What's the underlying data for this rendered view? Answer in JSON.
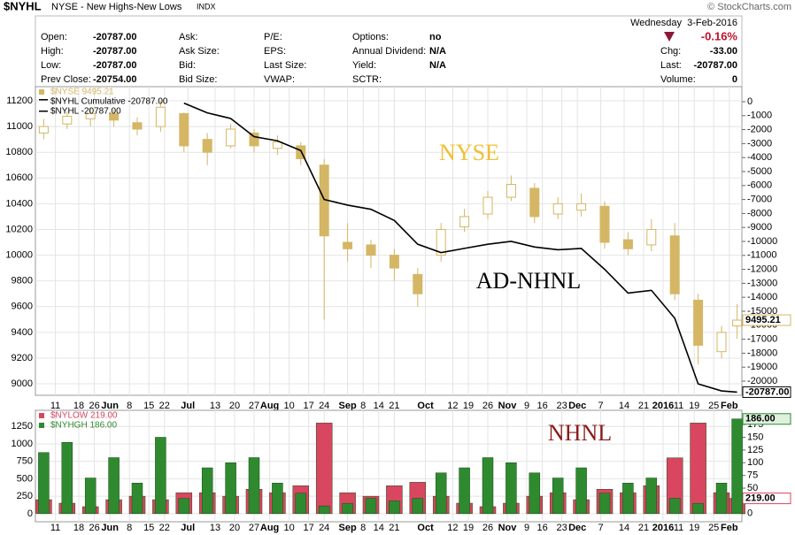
{
  "header": {
    "symbol": "$NYHL",
    "description": "NYSE - New Highs-New Lows",
    "exchange": "INDX",
    "copyright": "© StockCharts.com",
    "date": "Wednesday  3-Feb-2016",
    "change": "-0.16%",
    "quote": [
      [
        {
          "label": "Open:",
          "value": "-20787.00"
        },
        {
          "label": "Ask:"
        },
        {
          "label": "P/E:"
        },
        {
          "label": "Options:",
          "value": "no"
        }
      ],
      [
        {
          "label": "High:",
          "value": "-20787.00"
        },
        {
          "label": "Ask Size:"
        },
        {
          "label": "EPS:"
        },
        {
          "label": "Annual Dividend:",
          "value": "N/A"
        }
      ],
      [
        {
          "label": "Low:",
          "value": "-20787.00"
        },
        {
          "label": "Bid:"
        },
        {
          "label": "Last Size:"
        },
        {
          "label": "Yield:",
          "value": "N/A"
        }
      ],
      [
        {
          "label": "Prev Close:",
          "value": "-20754.00"
        },
        {
          "label": "Bid Size:"
        },
        {
          "label": "VWAP:"
        },
        {
          "label": "SCTR:"
        }
      ]
    ],
    "summary": [
      {
        "label": "Chg:",
        "value": "-33.00"
      },
      {
        "label": "Last:",
        "value": "-20787.00"
      },
      {
        "label": "Volume:",
        "value": "0"
      }
    ]
  },
  "chart_data": [
    {
      "type": "candlestick",
      "grid": true,
      "x": [
        1,
        7,
        13,
        19,
        25,
        31,
        37,
        43,
        49,
        55,
        61,
        67,
        73,
        79,
        85,
        91,
        97,
        103,
        109,
        115,
        121,
        127,
        133,
        139,
        145,
        151,
        157,
        163,
        169,
        175,
        179
      ],
      "xlim": [
        0,
        180
      ],
      "xticks": [
        {
          "value": 4,
          "label": "11"
        },
        {
          "value": 10,
          "label": "18"
        },
        {
          "value": 14,
          "label": "26"
        },
        {
          "value": 18,
          "label": "Jun"
        },
        {
          "value": 23,
          "label": "8"
        },
        {
          "value": 28,
          "label": "15"
        },
        {
          "value": 32,
          "label": "22"
        },
        {
          "value": 38,
          "label": "Jul"
        },
        {
          "value": 45,
          "label": "13"
        },
        {
          "value": 50,
          "label": "20"
        },
        {
          "value": 55,
          "label": "27"
        },
        {
          "value": 59,
          "label": "Aug"
        },
        {
          "value": 64,
          "label": "10"
        },
        {
          "value": 69,
          "label": "17"
        },
        {
          "value": 73,
          "label": "24"
        },
        {
          "value": 79,
          "label": "Sep"
        },
        {
          "value": 83,
          "label": "8"
        },
        {
          "value": 87,
          "label": "14"
        },
        {
          "value": 91,
          "label": "21"
        },
        {
          "value": 99,
          "label": "Oct"
        },
        {
          "value": 106,
          "label": "12"
        },
        {
          "value": 110,
          "label": "19"
        },
        {
          "value": 115,
          "label": "26"
        },
        {
          "value": 120,
          "label": "Nov"
        },
        {
          "value": 125,
          "label": "9"
        },
        {
          "value": 129,
          "label": "16"
        },
        {
          "value": 134,
          "label": "23"
        },
        {
          "value": 138,
          "label": "Dec"
        },
        {
          "value": 144,
          "label": "7"
        },
        {
          "value": 150,
          "label": "14"
        },
        {
          "value": 155,
          "label": "21"
        },
        {
          "value": 160,
          "label": "2016"
        },
        {
          "value": 164,
          "label": "11"
        },
        {
          "value": 168,
          "label": "19"
        },
        {
          "value": 173,
          "label": "25"
        },
        {
          "value": 177,
          "label": "Feb"
        }
      ],
      "ylim": [
        8911,
        11310
      ],
      "yticks": [
        9000,
        9200,
        9400,
        9600,
        9800,
        10000,
        10200,
        10400,
        10600,
        10800,
        11000,
        11200
      ],
      "y2lim": [
        -21013,
        1076
      ],
      "y2ticks": [
        0,
        -1000,
        -2000,
        -3000,
        -4000,
        -5000,
        -6000,
        -7000,
        -8000,
        -9000,
        -10000,
        -11000,
        -12000,
        -13000,
        -14000,
        -15000,
        -16000,
        -17000,
        -18000,
        -19000,
        -20000
      ],
      "series": [
        {
          "name": "$NYSE 9495.21",
          "type": "candlestick",
          "color": "#d4b665",
          "open": [
            10950,
            11020,
            11060,
            11100,
            11030,
            11000,
            11100,
            10900,
            10850,
            10950,
            10830,
            10850,
            10700,
            10100,
            10080,
            10000,
            9850,
            10000,
            10220,
            10320,
            10450,
            10520,
            10320,
            10350,
            10380,
            10120,
            10080,
            10150,
            9650,
            9250,
            9450
          ],
          "high": [
            11060,
            11120,
            11150,
            11130,
            11070,
            11200,
            11110,
            10950,
            11020,
            10980,
            10930,
            10880,
            10750,
            10250,
            10120,
            10050,
            9900,
            10250,
            10360,
            10500,
            10620,
            10560,
            10450,
            10480,
            10420,
            10180,
            10280,
            10250,
            9700,
            9450,
            9620
          ],
          "low": [
            10900,
            10980,
            11000,
            11000,
            10930,
            10960,
            10800,
            10700,
            10830,
            10800,
            10780,
            10700,
            9500,
            9950,
            9900,
            9800,
            9600,
            9950,
            10180,
            10280,
            10420,
            10250,
            10280,
            10300,
            10050,
            10000,
            10030,
            9650,
            9150,
            9200,
            9350
          ],
          "close": [
            11000,
            11080,
            11100,
            11050,
            10980,
            11150,
            10850,
            10800,
            10980,
            10850,
            10880,
            10750,
            10150,
            10050,
            10000,
            9900,
            9700,
            10200,
            10300,
            10450,
            10550,
            10300,
            10400,
            10400,
            10100,
            10050,
            10200,
            9700,
            9300,
            9400,
            9495.21
          ],
          "last_label": "9495.21"
        },
        {
          "name": "$NYHL Cumulative -20787.00",
          "type": "line",
          "axis": "y2",
          "color": "#000000",
          "values": [
            null,
            null,
            null,
            null,
            null,
            null,
            -100,
            -800,
            -1200,
            -2500,
            -2800,
            -3500,
            -7000,
            -7400,
            -7700,
            -8500,
            -10200,
            -10800,
            -10500,
            -10200,
            -10000,
            -10400,
            -10600,
            -10500,
            -12000,
            -13700,
            -13500,
            -15500,
            -20200,
            -20700,
            -20787
          ],
          "last_label": "-20787.00"
        }
      ],
      "legend_extra": "$NYHL -20787.00",
      "annotations": [
        {
          "text": "NYSE",
          "color": "#f0c030"
        },
        {
          "text": "AD-NHNL",
          "color": "#000000"
        }
      ]
    },
    {
      "type": "bar",
      "grid": true,
      "x": [
        1,
        7,
        13,
        19,
        25,
        31,
        37,
        43,
        49,
        55,
        61,
        67,
        73,
        79,
        85,
        91,
        97,
        103,
        109,
        115,
        121,
        127,
        133,
        139,
        145,
        151,
        157,
        163,
        169,
        175,
        179
      ],
      "xlim": [
        0,
        180
      ],
      "xticks": [
        {
          "value": 4,
          "label": "11"
        },
        {
          "value": 10,
          "label": "18"
        },
        {
          "value": 14,
          "label": "26"
        },
        {
          "value": 18,
          "label": "Jun"
        },
        {
          "value": 23,
          "label": "8"
        },
        {
          "value": 28,
          "label": "15"
        },
        {
          "value": 32,
          "label": "22"
        },
        {
          "value": 38,
          "label": "Jul"
        },
        {
          "value": 45,
          "label": "13"
        },
        {
          "value": 50,
          "label": "20"
        },
        {
          "value": 55,
          "label": "27"
        },
        {
          "value": 59,
          "label": "Aug"
        },
        {
          "value": 64,
          "label": "10"
        },
        {
          "value": 69,
          "label": "17"
        },
        {
          "value": 73,
          "label": "24"
        },
        {
          "value": 79,
          "label": "Sep"
        },
        {
          "value": 83,
          "label": "8"
        },
        {
          "value": 87,
          "label": "14"
        },
        {
          "value": 91,
          "label": "21"
        },
        {
          "value": 99,
          "label": "Oct"
        },
        {
          "value": 106,
          "label": "12"
        },
        {
          "value": 110,
          "label": "19"
        },
        {
          "value": 115,
          "label": "26"
        },
        {
          "value": 120,
          "label": "Nov"
        },
        {
          "value": 125,
          "label": "9"
        },
        {
          "value": 129,
          "label": "16"
        },
        {
          "value": 134,
          "label": "23"
        },
        {
          "value": 138,
          "label": "Dec"
        },
        {
          "value": 144,
          "label": "7"
        },
        {
          "value": 150,
          "label": "14"
        },
        {
          "value": 155,
          "label": "21"
        },
        {
          "value": 160,
          "label": "2016"
        },
        {
          "value": 164,
          "label": "11"
        },
        {
          "value": 168,
          "label": "19"
        },
        {
          "value": 173,
          "label": "25"
        },
        {
          "value": 177,
          "label": "Feb"
        }
      ],
      "ylim": [
        -116,
        1482
      ],
      "yticks": [
        0,
        250,
        500,
        750,
        1000,
        1250
      ],
      "y2lim": [
        -16,
        203
      ],
      "y2ticks": [
        0,
        25,
        50,
        75,
        100,
        125,
        150,
        175
      ],
      "series": [
        {
          "name": "$NYLOW 219.00",
          "type": "bar",
          "color": "#d9465f",
          "values": [
            200,
            150,
            100,
            200,
            250,
            200,
            300,
            300,
            250,
            350,
            300,
            400,
            1300,
            300,
            250,
            400,
            450,
            250,
            150,
            100,
            150,
            250,
            300,
            200,
            350,
            300,
            400,
            800,
            1300,
            300,
            219
          ],
          "last_label": "219.00"
        },
        {
          "name": "$NYHGH 186.00",
          "type": "bar",
          "axis": "y2",
          "color": "#2f8a2f",
          "values": [
            120,
            140,
            70,
            110,
            60,
            150,
            30,
            90,
            100,
            110,
            60,
            40,
            15,
            20,
            30,
            25,
            30,
            80,
            90,
            110,
            100,
            80,
            70,
            90,
            40,
            60,
            70,
            30,
            20,
            60,
            186
          ],
          "last_label": "186.00"
        }
      ],
      "annotations": [
        {
          "text": "NHNL",
          "color": "#8b1a1a"
        }
      ]
    }
  ]
}
